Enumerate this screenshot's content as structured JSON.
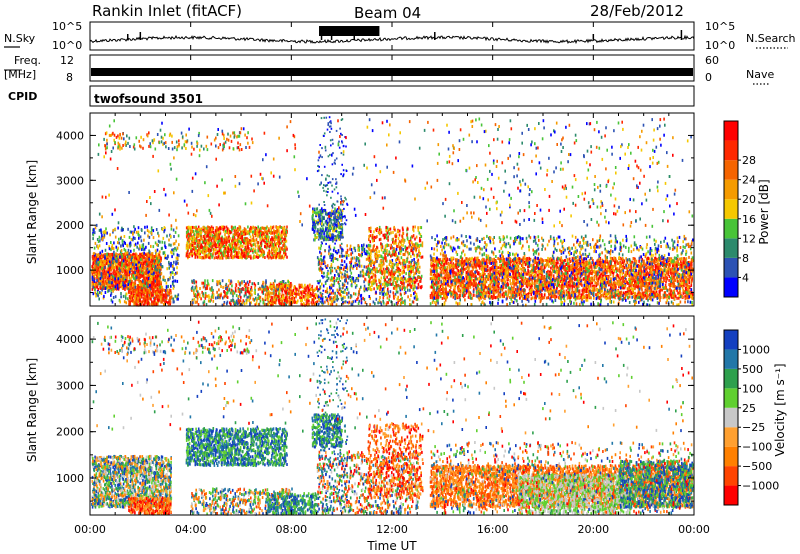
{
  "header": {
    "station": "Rankin Inlet (fitACF)",
    "beam": "Beam 04",
    "date": "28/Feb/2012"
  },
  "left_labels": {
    "nsky": "N.Sky",
    "freq": "Freq.",
    "mhz": "[MHz]",
    "cpid": "CPID"
  },
  "right_labels": {
    "nsearch": "N.Search",
    "nave": "Nave"
  },
  "cpid_text": "twofsound 3501",
  "colors": {
    "power": [
      "#0000ff",
      "#2c52b4",
      "#2c8a6c",
      "#48c438",
      "#f5c800",
      "#f59b00",
      "#f56400",
      "#ff2800",
      "#ff0000"
    ],
    "velocity": [
      "#ff0000",
      "#ff4400",
      "#ff8000",
      "#ffa030",
      "#c8c8c8",
      "#60d030",
      "#2ea04d",
      "#2277a8",
      "#1440c0"
    ]
  },
  "chart_data": [
    {
      "type": "line",
      "title": "N.Sky / N.Search",
      "y_ticks_left": [
        "10^5",
        "10^0"
      ],
      "y_ticks_right": [
        "10^5",
        "10^0"
      ]
    },
    {
      "type": "line",
      "title": "Freq. / Nave",
      "y_ticks_left": [
        "12",
        "8"
      ],
      "y_ticks_right": [
        "60",
        "0"
      ]
    },
    {
      "type": "heatmap",
      "ylabel": "Slant Range [km]",
      "ylim": [
        200,
        4500
      ],
      "y_ticks": [
        1000,
        2000,
        3000,
        4000
      ],
      "colorbar_label": "Power [dB]",
      "colorbar_ticks": [
        "4",
        "8",
        "12",
        "16",
        "20",
        "24",
        "28"
      ],
      "grid": false
    },
    {
      "type": "heatmap",
      "ylabel": "Slant Range [km]",
      "xlabel": "Time UT",
      "ylim": [
        200,
        4500
      ],
      "y_ticks": [
        1000,
        2000,
        3000,
        4000
      ],
      "x_ticks": [
        "00:00",
        "04:00",
        "08:00",
        "12:00",
        "16:00",
        "20:00",
        "00:00"
      ],
      "xlim_hours": [
        0,
        24
      ],
      "colorbar_label": "Velocity [m s⁻¹]",
      "colorbar_ticks": [
        "1000",
        "500",
        "100",
        "25",
        "−25",
        "−100",
        "−500",
        "−1000"
      ],
      "grid": false
    }
  ]
}
